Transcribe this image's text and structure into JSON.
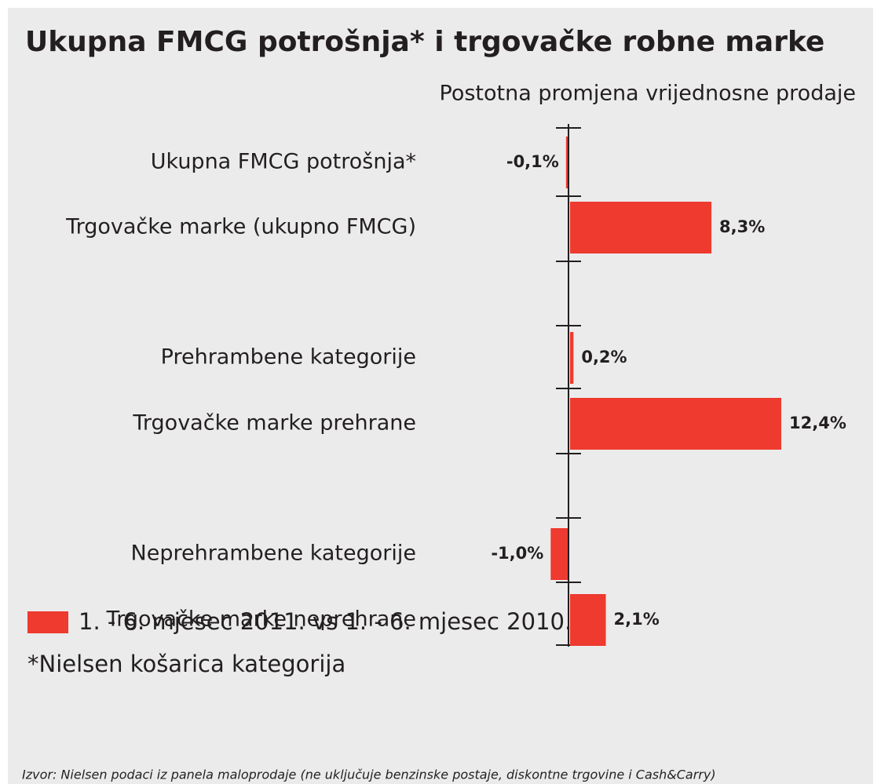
{
  "chart_data": {
    "type": "bar",
    "orientation": "horizontal",
    "title": "Ukupna FMCG potrošnja* i trgovačke robne marke",
    "subtitle": "Postotna promjena vrijednosne prodaje",
    "categories": [
      "Ukupna FMCG potrošnja*",
      "Trgovačke marke (ukupno FMCG)",
      "Prehrambene kategorije",
      "Trgovačke marke prehrane",
      "Neprehrambene kategorije",
      "Trgovačke marke neprehrane"
    ],
    "series": [
      {
        "name": "1. - 6. mjesec 2011. vs 1. - 6.  mjesec 2010.",
        "color": "#ee3a2f",
        "values": [
          -0.1,
          8.3,
          0.2,
          12.4,
          -1.0,
          2.1
        ],
        "value_labels": [
          "-0,1%",
          "8,3%",
          "0,2%",
          "12,4%",
          "-1,0%",
          "2,1%"
        ]
      }
    ],
    "note": "*Nielsen košarica kategorija",
    "source": "Izvor: Nielsen podaci iz panela maloprodaje (ne uključuje benzinske postaje, diskontne trgovine i Cash&Carry)"
  }
}
